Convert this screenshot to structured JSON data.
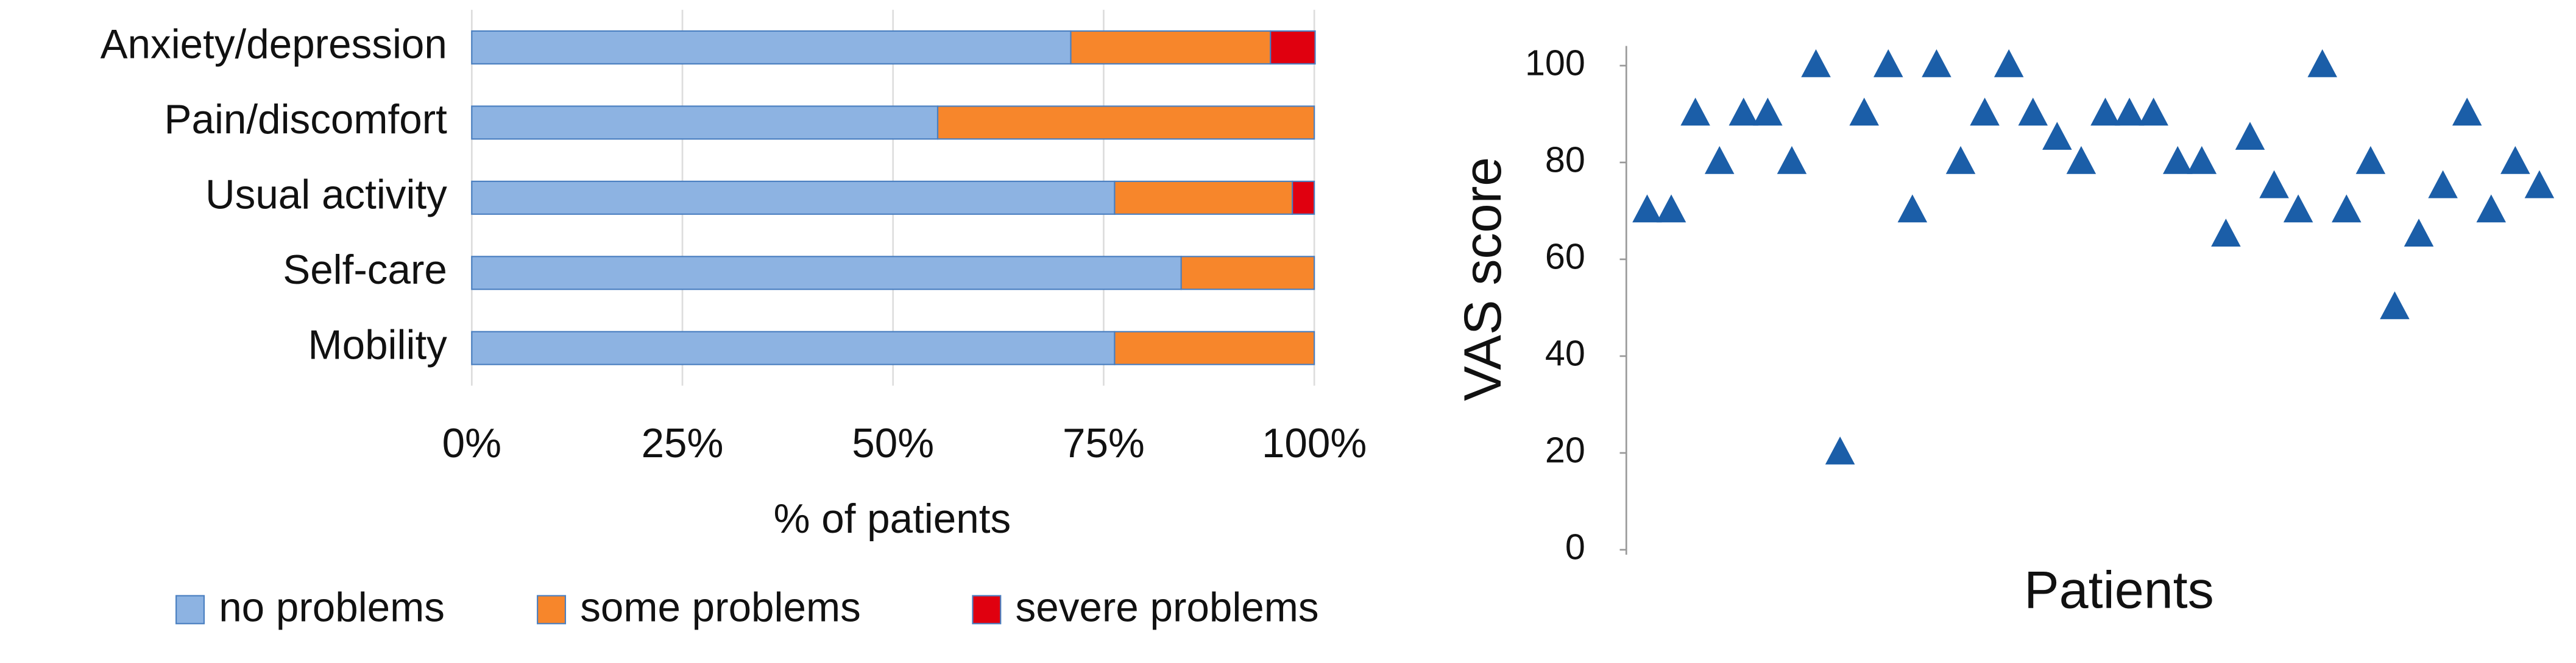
{
  "chart_data": [
    {
      "type": "stacked-bar-horizontal",
      "categories": [
        "Anxiety/depression",
        "Pain/discomfort",
        "Usual activity",
        "Self-care",
        "Mobility"
      ],
      "series": [
        {
          "name": "no problems",
          "color": "#8db3e2",
          "values": [
            71.1,
            55.3,
            76.3,
            84.2,
            76.3
          ]
        },
        {
          "name": "some problems",
          "color": "#f7862b",
          "values": [
            23.7,
            44.7,
            21.1,
            15.8,
            23.7
          ]
        },
        {
          "name": "severe problems",
          "color": "#e0000f",
          "values": [
            5.3,
            0,
            2.6,
            0,
            0
          ]
        }
      ],
      "xlim": [
        0,
        100
      ],
      "xticks": [
        {
          "value": 0,
          "label": "0%"
        },
        {
          "value": 25,
          "label": "25%"
        },
        {
          "value": 50,
          "label": "50%"
        },
        {
          "value": 75,
          "label": "75%"
        },
        {
          "value": 100,
          "label": "100%"
        }
      ],
      "x_label": "% of patients",
      "grid": true,
      "legend": "bottom"
    },
    {
      "type": "scatter",
      "x": [
        1,
        2,
        3,
        4,
        5,
        6,
        7,
        8,
        9,
        10,
        11,
        12,
        13,
        14,
        15,
        16,
        17,
        18,
        19,
        20,
        21,
        22,
        23,
        24,
        25,
        26,
        27,
        28,
        29,
        30,
        31,
        32,
        33,
        34,
        35,
        36,
        37,
        38
      ],
      "values": [
        70,
        70,
        90,
        80,
        90,
        90,
        80,
        100,
        20,
        90,
        100,
        70,
        100,
        80,
        90,
        100,
        90,
        85,
        80,
        90,
        90,
        90,
        80,
        80,
        65,
        85,
        75,
        70,
        100,
        70,
        80,
        50,
        65,
        75,
        90,
        70,
        80,
        75
      ],
      "color": "#1b5ea8",
      "xlim": [
        0,
        39.5
      ],
      "ylim": [
        0,
        100
      ],
      "yticks": [
        0,
        20,
        40,
        60,
        80,
        100
      ],
      "x_label": "Patients",
      "y_label": "VAS score"
    }
  ]
}
